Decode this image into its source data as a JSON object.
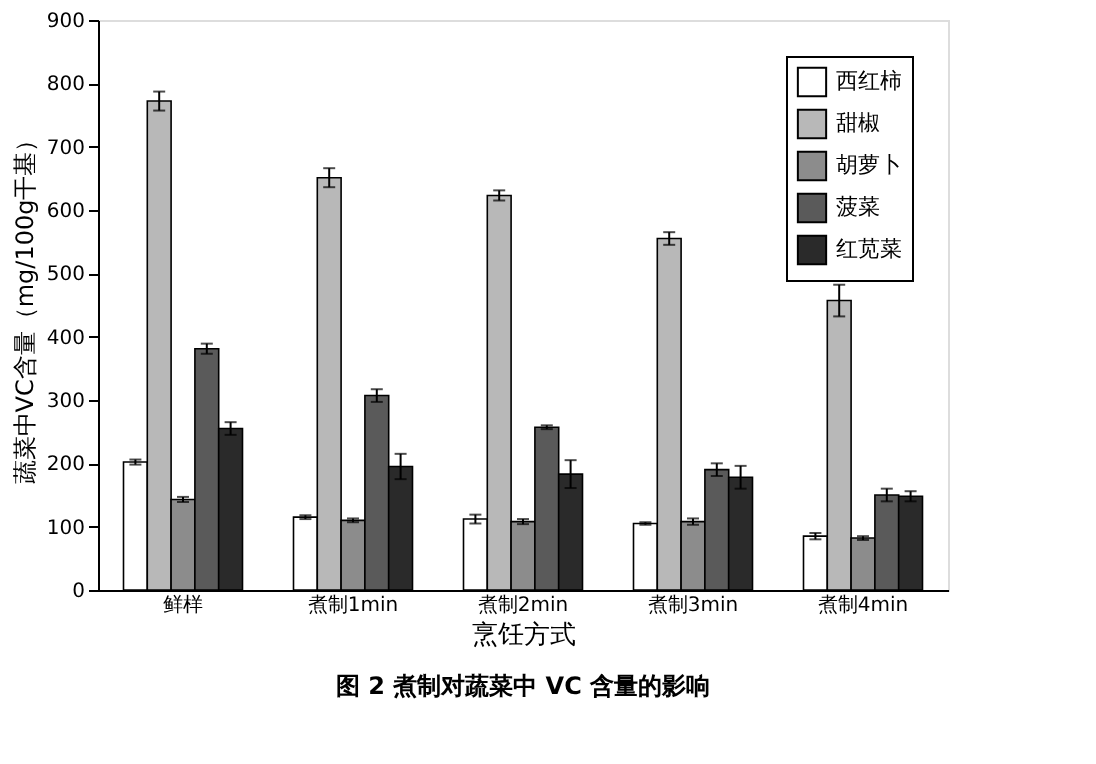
{
  "chart_data": {
    "type": "bar",
    "title": "图 2  煮制对蔬菜中 VC 含量的影响",
    "xlabel": "烹饪方式",
    "ylabel": "蔬菜中VC含量（mg/100g干基）",
    "categories": [
      "鲜样",
      "煮制1min",
      "煮制2min",
      "煮制3min",
      "煮制4min"
    ],
    "series": [
      {
        "name": "西红柿",
        "color": "#ffffff",
        "values": [
          202,
          115,
          112,
          105,
          85
        ],
        "errors": [
          4,
          3,
          7,
          2,
          5
        ]
      },
      {
        "name": "甜椒",
        "color": "#b8b8b8",
        "values": [
          772,
          651,
          623,
          555,
          457
        ],
        "errors": [
          15,
          15,
          8,
          10,
          25
        ]
      },
      {
        "name": "胡萝卜",
        "color": "#8c8c8c",
        "values": [
          143,
          110,
          108,
          108,
          82
        ],
        "errors": [
          4,
          3,
          4,
          5,
          3
        ]
      },
      {
        "name": "菠菜",
        "color": "#5a5a5a",
        "values": [
          381,
          307,
          257,
          190,
          150
        ],
        "errors": [
          8,
          10,
          3,
          10,
          10
        ]
      },
      {
        "name": "红苋菜",
        "color": "#2a2a2a",
        "values": [
          255,
          195,
          183,
          178,
          148
        ],
        "errors": [
          10,
          20,
          22,
          18,
          8
        ]
      }
    ],
    "ylim": [
      0,
      900
    ],
    "yticks": [
      0,
      100,
      200,
      300,
      400,
      500,
      600,
      700,
      800,
      900
    ],
    "grid": false,
    "legend": "top right"
  }
}
